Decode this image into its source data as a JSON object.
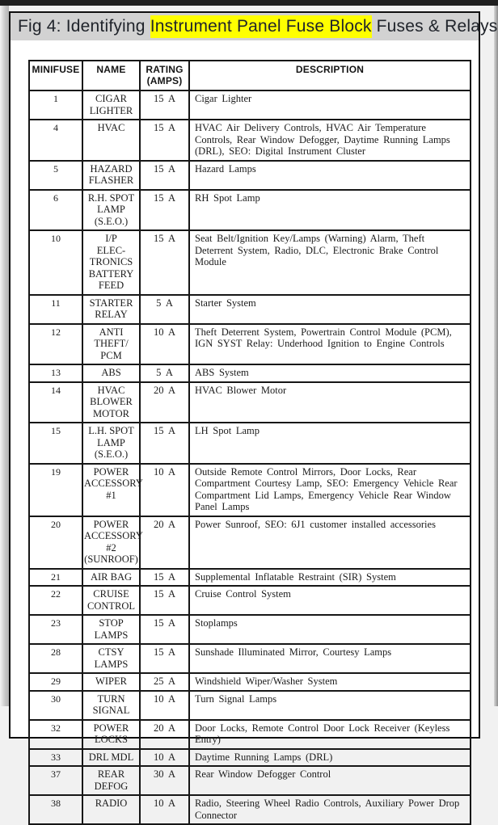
{
  "caption": {
    "prefix": "Fig 4: Identifying ",
    "highlight": "Instrument Panel Fuse Block",
    "suffix": " Fuses & Relays",
    "highlight_color": "#ffff00",
    "bar_color": "#d2d2d2"
  },
  "table": {
    "headers": [
      "MINIFUSE",
      "NAME",
      "RATING\n(AMPS)",
      "DESCRIPTION"
    ],
    "rows": [
      {
        "minifuse": "1",
        "name": "CIGAR\nLIGHTER",
        "rating": "15 A",
        "description": "Cigar Lighter"
      },
      {
        "minifuse": "4",
        "name": "HVAC",
        "rating": "15 A",
        "description": "HVAC Air Delivery Controls, HVAC Air Temperature Controls, Rear Window Defogger, Daytime Running Lamps (DRL), SEO: Digital Instrument Cluster"
      },
      {
        "minifuse": "5",
        "name": "HAZARD\nFLASHER",
        "rating": "15 A",
        "description": "Hazard Lamps"
      },
      {
        "minifuse": "6",
        "name": "R.H. SPOT\nLAMP\n(S.E.O.)",
        "rating": "15 A",
        "description": "RH Spot Lamp"
      },
      {
        "minifuse": "10",
        "name": "I/P\nELEC-\nTRONICS\nBATTERY\nFEED",
        "rating": "15 A",
        "description": "Seat Belt/Ignition Key/Lamps (Warning) Alarm, Theft Deterrent System, Radio, DLC, Electronic Brake Control Module"
      },
      {
        "minifuse": "11",
        "name": "STARTER\nRELAY",
        "rating": "5 A",
        "description": "Starter System"
      },
      {
        "minifuse": "12",
        "name": "ANTI\nTHEFT/\nPCM",
        "rating": "10 A",
        "description": "Theft Deterrent System, Powertrain Control Module (PCM), IGN SYST Relay: Underhood Ignition to Engine Controls"
      },
      {
        "minifuse": "13",
        "name": "ABS",
        "rating": "5 A",
        "description": "ABS System"
      },
      {
        "minifuse": "14",
        "name": "HVAC\nBLOWER\nMOTOR",
        "rating": "20 A",
        "description": "HVAC Blower Motor"
      },
      {
        "minifuse": "15",
        "name": "L.H. SPOT\nLAMP\n(S.E.O.)",
        "rating": "15 A",
        "description": "LH Spot Lamp"
      },
      {
        "minifuse": "19",
        "name": "POWER\nACCESSORY\n#1",
        "rating": "10 A",
        "description": "Outside Remote Control Mirrors, Door Locks, Rear Compartment Courtesy Lamp, SEO: Emergency Vehicle Rear Compartment Lid Lamps, Emergency Vehicle Rear Window Panel Lamps"
      },
      {
        "minifuse": "20",
        "name": "POWER\nACCESSORY\n#2\n(SUNROOF)",
        "rating": "20 A",
        "description": "Power Sunroof, SEO: 6J1 customer installed accessories"
      },
      {
        "minifuse": "21",
        "name": "AIR BAG",
        "rating": "15 A",
        "description": "Supplemental Inflatable Restraint (SIR) System"
      },
      {
        "minifuse": "22",
        "name": "CRUISE\nCONTROL",
        "rating": "15 A",
        "description": "Cruise Control System"
      },
      {
        "minifuse": "23",
        "name": "STOP\nLAMPS",
        "rating": "15 A",
        "description": "Stoplamps"
      },
      {
        "minifuse": "28",
        "name": "CTSY\nLAMPS",
        "rating": "15 A",
        "description": "Sunshade Illuminated Mirror, Courtesy Lamps"
      },
      {
        "minifuse": "29",
        "name": "WIPER",
        "rating": "25 A",
        "description": "Windshield Wiper/Washer System"
      },
      {
        "minifuse": "30",
        "name": "TURN\nSIGNAL",
        "rating": "10 A",
        "description": "Turn Signal Lamps"
      },
      {
        "minifuse": "32",
        "name": "POWER\nLOCKS",
        "rating": "20 A",
        "description": "Door Locks, Remote Control Door Lock Receiver (Keyless Entry)"
      },
      {
        "minifuse": "33",
        "name": "DRL MDL",
        "rating": "10 A",
        "description": "Daytime Running Lamps (DRL)"
      },
      {
        "minifuse": "37",
        "name": "REAR\nDEFOG",
        "rating": "30 A",
        "description": "Rear Window Defogger Control"
      },
      {
        "minifuse": "38",
        "name": "RADIO",
        "rating": "10 A",
        "description": "Radio, Steering Wheel Radio Controls, Auxiliary Power Drop Connector"
      }
    ]
  }
}
